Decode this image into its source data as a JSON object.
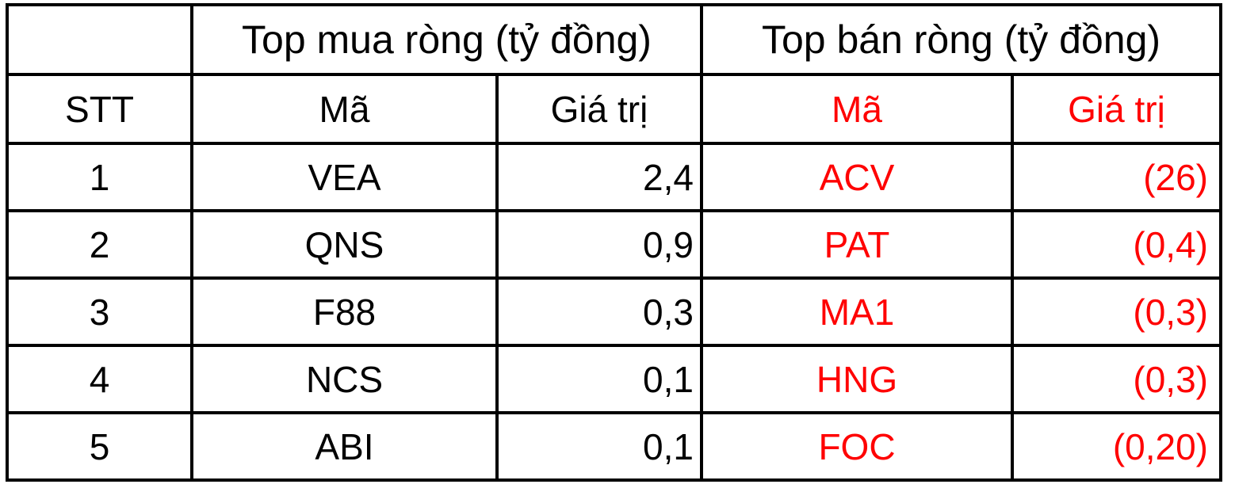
{
  "colors": {
    "sell_text": "#FF0000",
    "buy_text": "#000000",
    "border": "#000000",
    "background": "#FFFFFF"
  },
  "chart_data": {
    "type": "table",
    "column_groups": [
      {
        "label": "Top mua ròng (tỷ đồng)"
      },
      {
        "label": "Top bán ròng (tỷ đồng)"
      }
    ],
    "columns": [
      "STT",
      "Mã",
      "Giá trị",
      "Mã",
      "Giá trị"
    ],
    "rows": [
      [
        "1",
        "VEA",
        "2,4",
        "ACV",
        "(26)"
      ],
      [
        "2",
        "QNS",
        "0,9",
        "PAT",
        "(0,4)"
      ],
      [
        "3",
        "F88",
        "0,3",
        "MA1",
        "(0,3)"
      ],
      [
        "4",
        "NCS",
        "0,1",
        "HNG",
        "(0,3)"
      ],
      [
        "5",
        "ABI",
        "0,1",
        "FOC",
        "(0,20)"
      ]
    ]
  }
}
